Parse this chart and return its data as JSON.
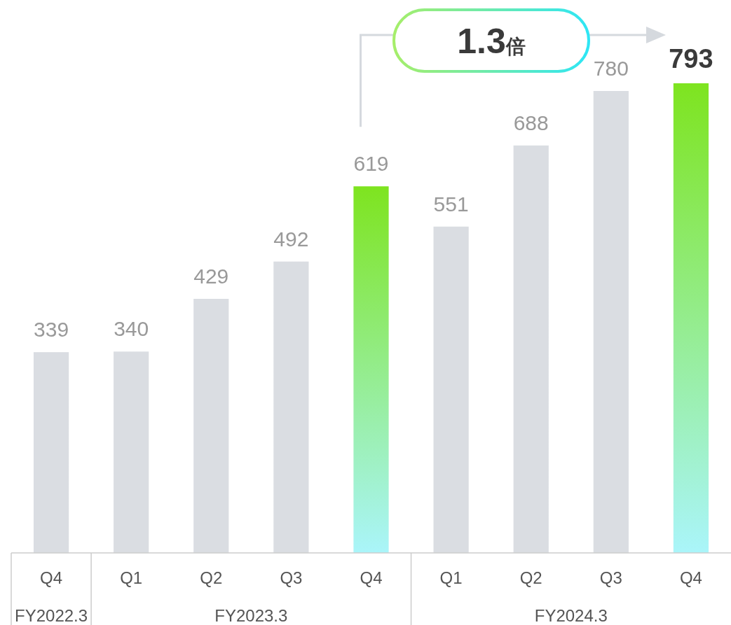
{
  "chart_data": {
    "type": "bar",
    "categories": [
      "Q4",
      "Q1",
      "Q2",
      "Q3",
      "Q4",
      "Q1",
      "Q2",
      "Q3",
      "Q4"
    ],
    "values": [
      339,
      340,
      429,
      492,
      619,
      551,
      688,
      780,
      793
    ],
    "colors": [
      "#dadde2",
      "#dadde2",
      "#dadde2",
      "#dadde2",
      "#7ee41f",
      "#dadde2",
      "#dadde2",
      "#dadde2",
      "#7ee41f"
    ],
    "data_labels": true,
    "annotations": [
      "FY2022.3",
      "FY2023.3",
      "FY2024.3",
      "1.3倍"
    ]
  }
}
